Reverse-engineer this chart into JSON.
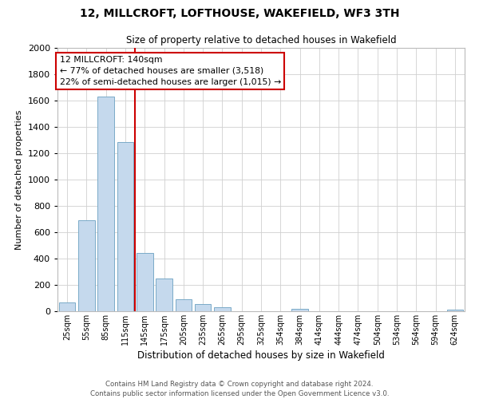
{
  "title": "12, MILLCROFT, LOFTHOUSE, WAKEFIELD, WF3 3TH",
  "subtitle": "Size of property relative to detached houses in Wakefield",
  "xlabel": "Distribution of detached houses by size in Wakefield",
  "ylabel": "Number of detached properties",
  "categories": [
    "25sqm",
    "55sqm",
    "85sqm",
    "115sqm",
    "145sqm",
    "175sqm",
    "205sqm",
    "235sqm",
    "265sqm",
    "295sqm",
    "325sqm",
    "354sqm",
    "384sqm",
    "414sqm",
    "444sqm",
    "474sqm",
    "504sqm",
    "534sqm",
    "564sqm",
    "594sqm",
    "624sqm"
  ],
  "values": [
    65,
    690,
    1630,
    1285,
    440,
    250,
    90,
    52,
    30,
    0,
    0,
    0,
    20,
    0,
    0,
    0,
    0,
    0,
    0,
    0,
    10
  ],
  "bar_color": "#c5d9ed",
  "bar_edge_color": "#7aaac8",
  "vline_color": "#cc0000",
  "annotation_line1": "12 MILLCROFT: 140sqm",
  "annotation_line2": "← 77% of detached houses are smaller (3,518)",
  "annotation_line3": "22% of semi-detached houses are larger (1,015) →",
  "annotation_box_color": "#ffffff",
  "annotation_box_edge": "#cc0000",
  "ylim": [
    0,
    2000
  ],
  "yticks": [
    0,
    200,
    400,
    600,
    800,
    1000,
    1200,
    1400,
    1600,
    1800,
    2000
  ],
  "footer_line1": "Contains HM Land Registry data © Crown copyright and database right 2024.",
  "footer_line2": "Contains public sector information licensed under the Open Government Licence v3.0.",
  "bg_color": "#ffffff",
  "grid_color": "#d0d0d0",
  "vline_index": 3.5
}
